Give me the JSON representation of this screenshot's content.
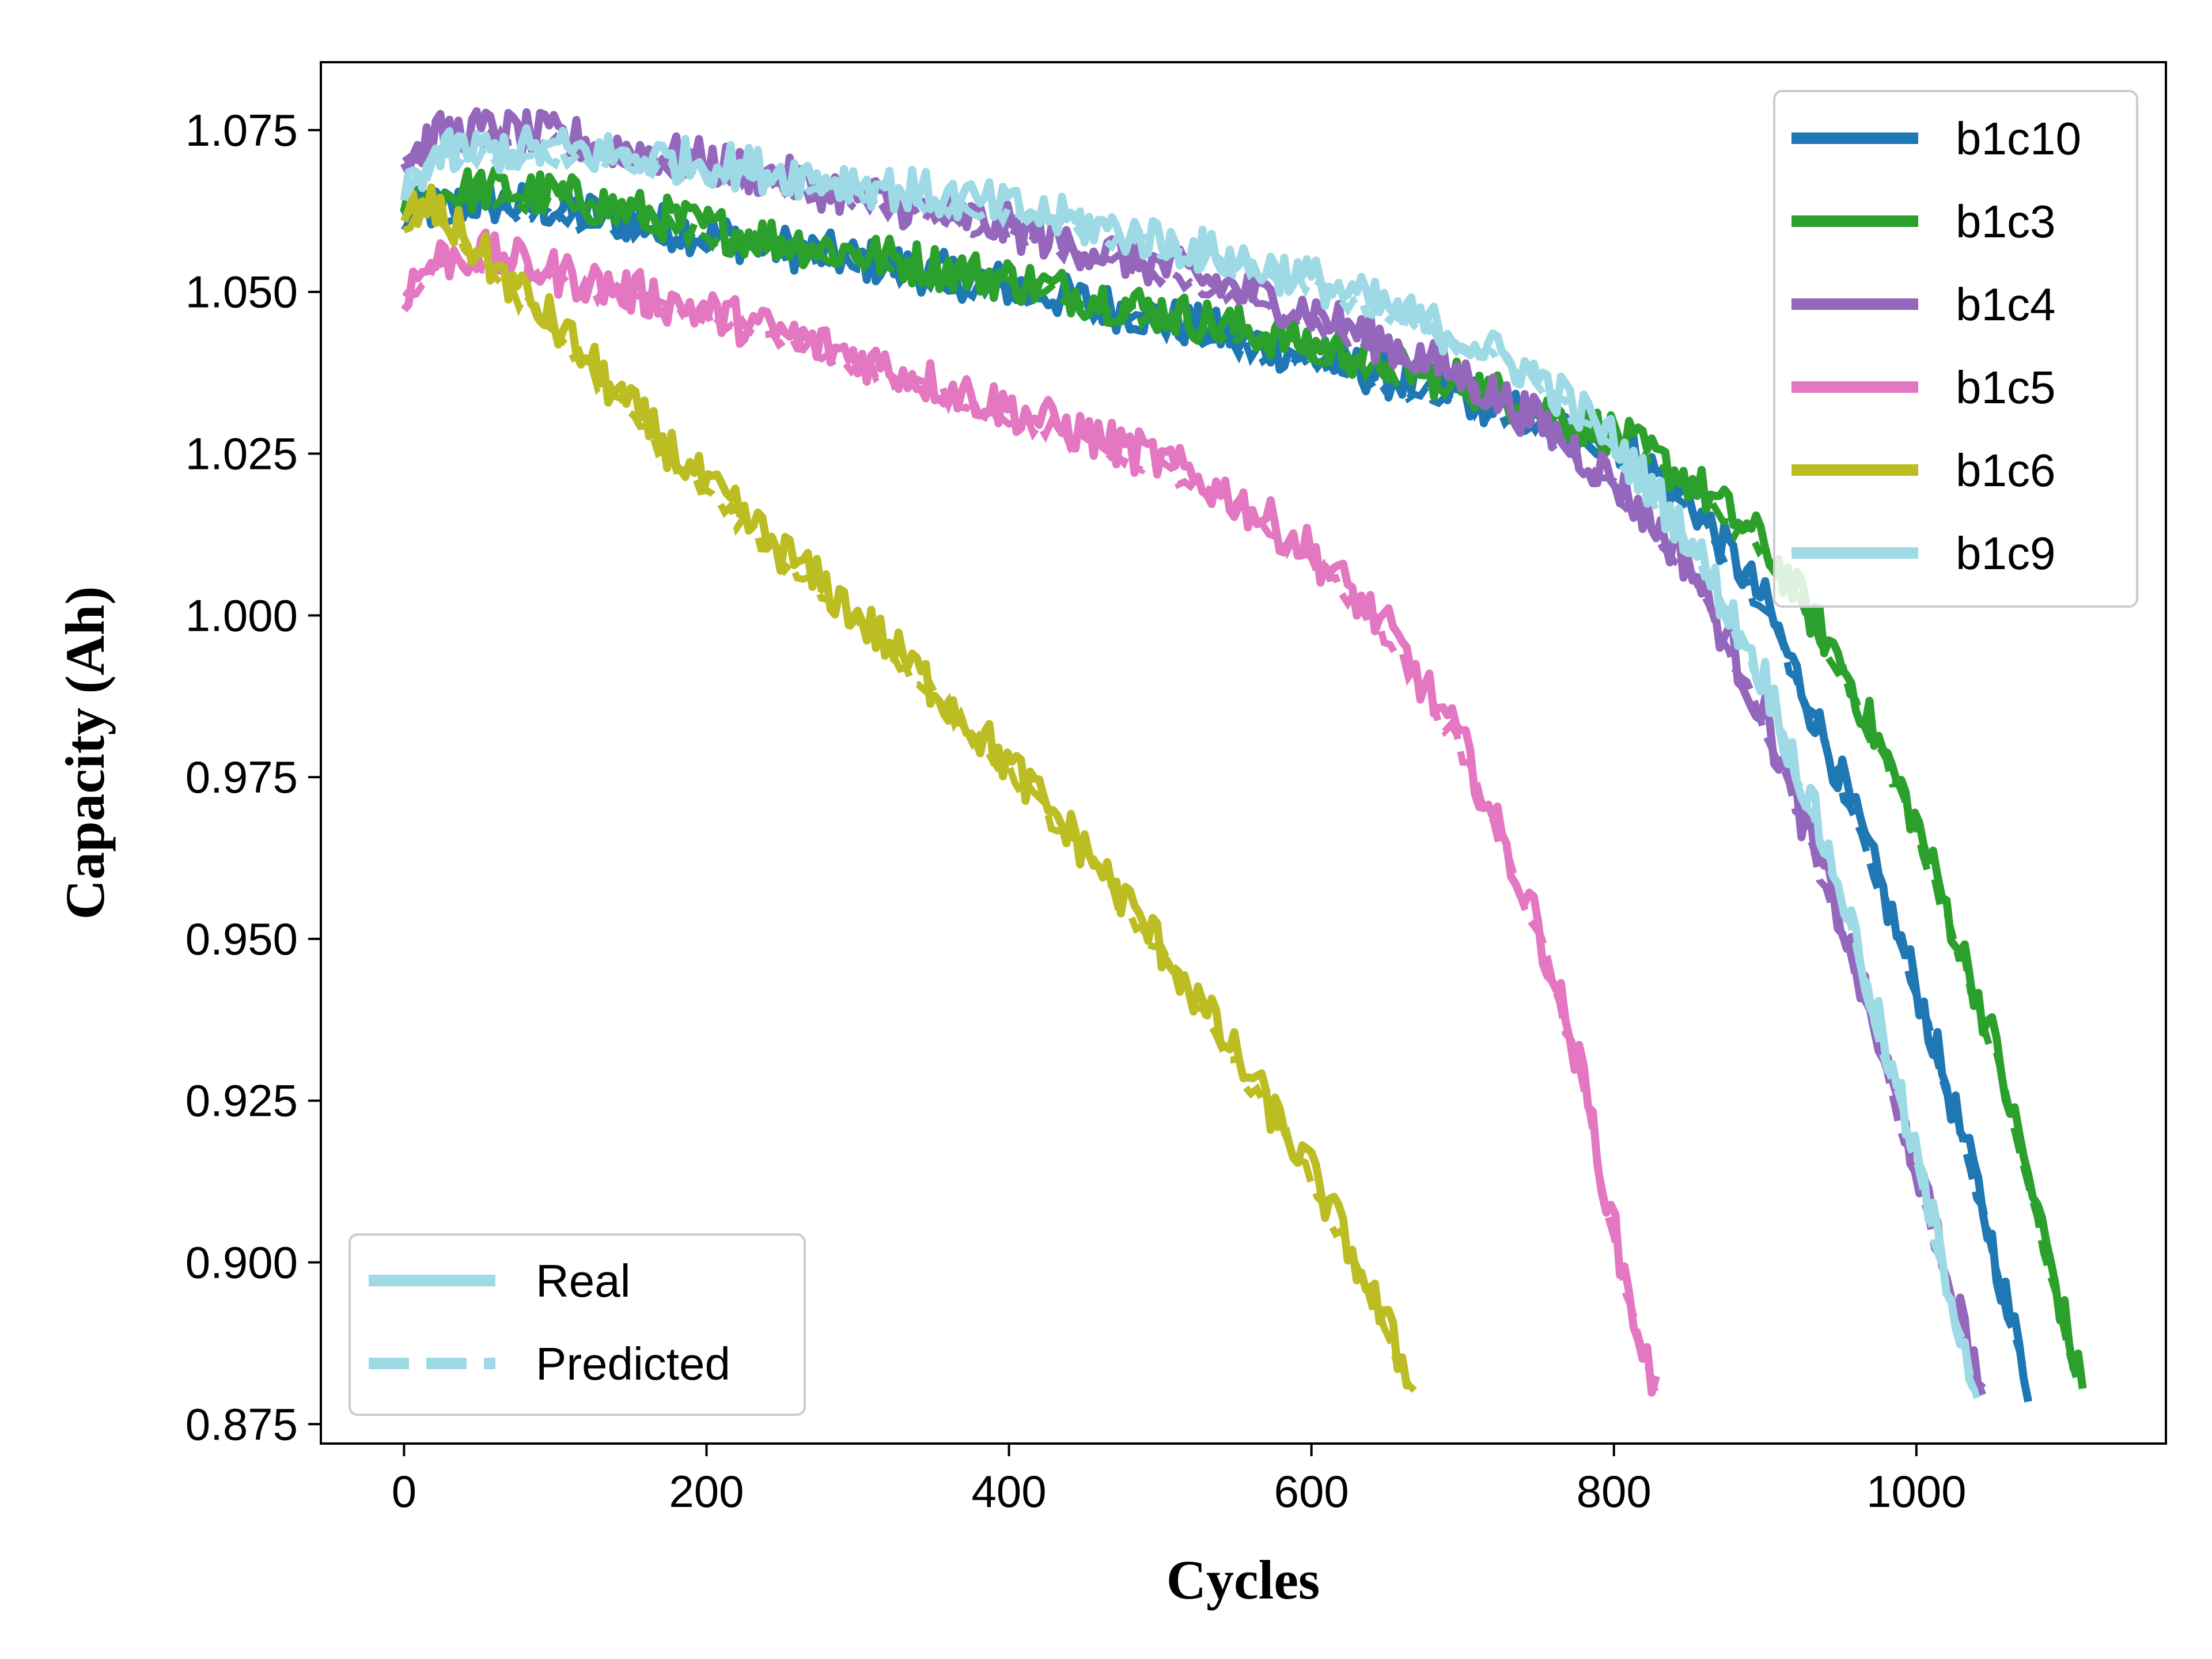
{
  "chart_data": {
    "type": "line",
    "title": "",
    "xlabel": "Cycles",
    "ylabel": "Capacity (Ah)",
    "xlim": [
      -55,
      1165
    ],
    "ylim": [
      0.872,
      1.0855
    ],
    "xticks": [
      0,
      200,
      400,
      600,
      800,
      1000
    ],
    "xtick_labels": [
      "0",
      "200",
      "400",
      "600",
      "800",
      "1000"
    ],
    "yticks": [
      0.875,
      0.9,
      0.925,
      0.95,
      0.975,
      1.0,
      1.025,
      1.05,
      1.075
    ],
    "ytick_labels": [
      "0.875",
      "0.900",
      "0.925",
      "0.950",
      "0.975",
      "1.000",
      "1.025",
      "1.050",
      "1.075"
    ],
    "grid": false,
    "legend_series_position": "top-right",
    "legend_style_position": "bottom-left",
    "line_styles": [
      {
        "label": "Real",
        "dash": "solid"
      },
      {
        "label": "Predicted",
        "dash": "dashed"
      }
    ],
    "series": [
      {
        "name": "b1c10",
        "color": "#1f77b4",
        "x": [
          0,
          50,
          100,
          200,
          300,
          400,
          500,
          600,
          700,
          800,
          850,
          900,
          950,
          1000,
          1040,
          1075
        ],
        "y": [
          1.062,
          1.064,
          1.063,
          1.059,
          1.055,
          1.051,
          1.046,
          1.04,
          1.034,
          1.027,
          1.018,
          1.002,
          0.975,
          0.943,
          0.912,
          0.88
        ]
      },
      {
        "name": "b1c3",
        "color": "#2ca02c",
        "x": [
          0,
          50,
          100,
          200,
          300,
          400,
          500,
          600,
          700,
          800,
          850,
          900,
          950,
          1000,
          1050,
          1080,
          1110
        ],
        "y": [
          1.064,
          1.066,
          1.065,
          1.06,
          1.056,
          1.052,
          1.047,
          1.042,
          1.036,
          1.028,
          1.021,
          1.011,
          0.993,
          0.968,
          0.935,
          0.908,
          0.88
        ]
      },
      {
        "name": "b1c4",
        "color": "#9467bd",
        "x": [
          0,
          20,
          50,
          100,
          200,
          300,
          400,
          500,
          600,
          700,
          750,
          800,
          850,
          900,
          950,
          1000,
          1020,
          1045
        ],
        "y": [
          1.07,
          1.074,
          1.075,
          1.074,
          1.07,
          1.065,
          1.06,
          1.054,
          1.047,
          1.037,
          1.03,
          1.021,
          1.008,
          0.984,
          0.953,
          0.915,
          0.898,
          0.88
        ]
      },
      {
        "name": "b1c5",
        "color": "#e377c2",
        "x": [
          0,
          20,
          50,
          100,
          150,
          200,
          300,
          400,
          500,
          550,
          600,
          650,
          700,
          750,
          780,
          800,
          815,
          828
        ],
        "y": [
          1.05,
          1.055,
          1.056,
          1.053,
          1.05,
          1.047,
          1.04,
          1.032,
          1.024,
          1.018,
          1.01,
          0.998,
          0.98,
          0.952,
          0.928,
          0.905,
          0.89,
          0.88
        ]
      },
      {
        "name": "b1c6",
        "color": "#bcbd22",
        "x": [
          0,
          20,
          50,
          100,
          150,
          200,
          250,
          300,
          350,
          400,
          450,
          500,
          550,
          600,
          630,
          650,
          668
        ],
        "y": [
          1.062,
          1.063,
          1.056,
          1.045,
          1.032,
          1.02,
          1.01,
          1.0,
          0.989,
          0.977,
          0.964,
          0.949,
          0.932,
          0.914,
          0.9,
          0.89,
          0.88
        ]
      },
      {
        "name": "b1c9",
        "color": "#9edae5",
        "x": [
          0,
          20,
          50,
          100,
          200,
          300,
          400,
          500,
          600,
          700,
          750,
          800,
          850,
          900,
          950,
          1000,
          1020,
          1040
        ],
        "y": [
          1.066,
          1.071,
          1.072,
          1.072,
          1.07,
          1.067,
          1.063,
          1.058,
          1.052,
          1.043,
          1.037,
          1.027,
          1.012,
          0.99,
          0.958,
          0.916,
          0.898,
          0.88
        ]
      }
    ]
  }
}
